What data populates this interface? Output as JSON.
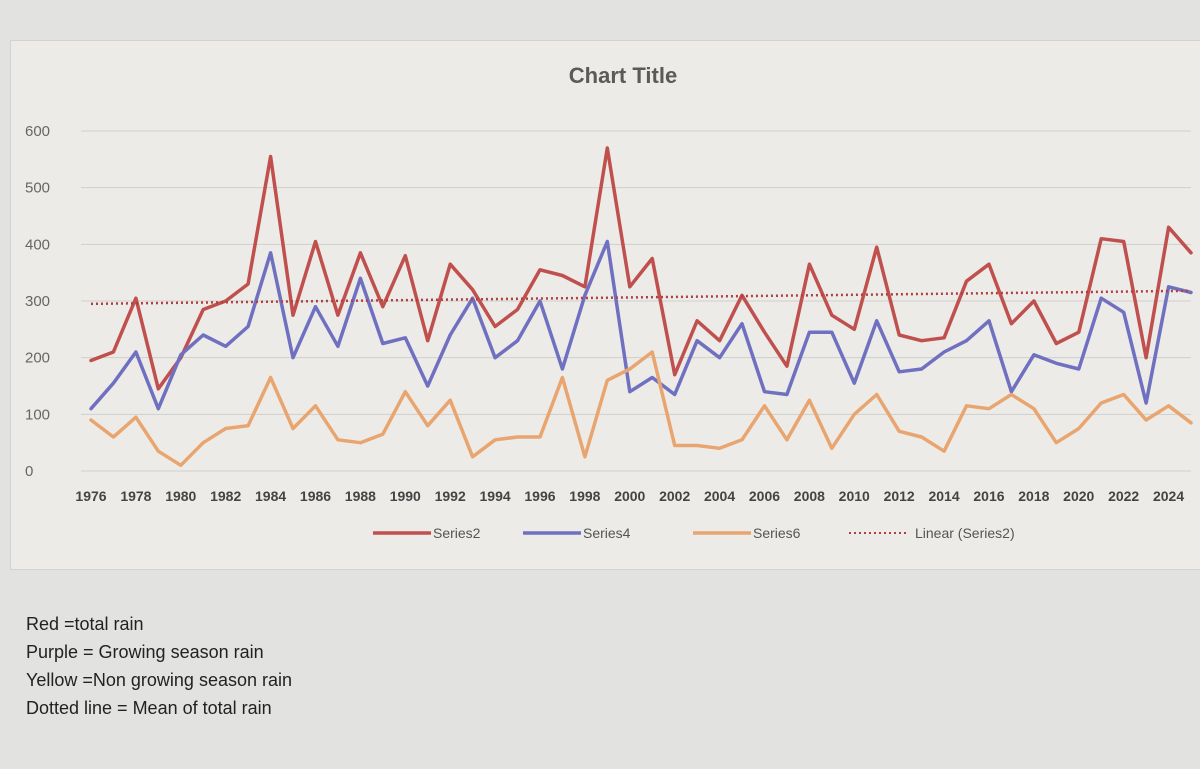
{
  "chart_data": {
    "type": "line",
    "title": "Chart Title",
    "xlabel": "",
    "ylabel": "",
    "ylim": [
      0,
      600
    ],
    "yticks": [
      "0",
      "100",
      "200",
      "300",
      "400",
      "500",
      "600"
    ],
    "x": [
      1976,
      1977,
      1978,
      1979,
      1980,
      1981,
      1982,
      1983,
      1984,
      1985,
      1986,
      1987,
      1988,
      1989,
      1990,
      1991,
      1992,
      1993,
      1994,
      1995,
      1996,
      1997,
      1998,
      1999,
      2000,
      2001,
      2002,
      2003,
      2004,
      2005,
      2006,
      2007,
      2008,
      2009,
      2010,
      2011,
      2012,
      2013,
      2014,
      2015,
      2016,
      2017,
      2018,
      2019,
      2020,
      2021,
      2022,
      2023,
      2024,
      2025
    ],
    "xtick_labels": [
      "1976",
      "1978",
      "1980",
      "1982",
      "1984",
      "1986",
      "1988",
      "1990",
      "1992",
      "1994",
      "1996",
      "1998",
      "2000",
      "2002",
      "2004",
      "2006",
      "2008",
      "2010",
      "2012",
      "2014",
      "2016",
      "2018",
      "2020",
      "2022",
      "2024"
    ],
    "grid": true,
    "legend_position": "bottom",
    "series": [
      {
        "name": "Series2",
        "color": "#c0504d",
        "values": [
          195,
          210,
          305,
          145,
          200,
          285,
          300,
          330,
          555,
          275,
          405,
          275,
          385,
          290,
          380,
          230,
          365,
          320,
          255,
          285,
          355,
          345,
          325,
          570,
          325,
          375,
          170,
          265,
          230,
          310,
          245,
          185,
          365,
          275,
          250,
          395,
          240,
          230,
          235,
          335,
          365,
          260,
          300,
          225,
          245,
          410,
          405,
          200,
          430,
          385
        ]
      },
      {
        "name": "Series4",
        "color": "#7070c0",
        "values": [
          110,
          155,
          210,
          110,
          205,
          240,
          220,
          255,
          385,
          200,
          290,
          220,
          340,
          225,
          235,
          150,
          240,
          305,
          200,
          230,
          300,
          180,
          310,
          405,
          140,
          165,
          135,
          230,
          200,
          260,
          140,
          135,
          245,
          245,
          155,
          265,
          175,
          180,
          210,
          230,
          265,
          140,
          205,
          190,
          180,
          305,
          280,
          120,
          325,
          315
        ]
      },
      {
        "name": "Series6",
        "color": "#e9a56f",
        "values": [
          90,
          60,
          95,
          35,
          10,
          50,
          75,
          80,
          165,
          75,
          115,
          55,
          50,
          65,
          140,
          80,
          125,
          25,
          55,
          60,
          60,
          165,
          25,
          160,
          180,
          210,
          45,
          45,
          40,
          55,
          115,
          55,
          125,
          40,
          100,
          135,
          70,
          60,
          35,
          115,
          110,
          135,
          110,
          50,
          75,
          120,
          135,
          90,
          115,
          85
        ]
      }
    ],
    "trendline": {
      "name": "Linear (Series2)",
      "color": "#b04040",
      "start": 295,
      "end": 318
    }
  },
  "notes": [
    "Red =total rain",
    "Purple = Growing season rain",
    "Yellow =Non growing season rain",
    "Dotted line = Mean of total rain"
  ]
}
